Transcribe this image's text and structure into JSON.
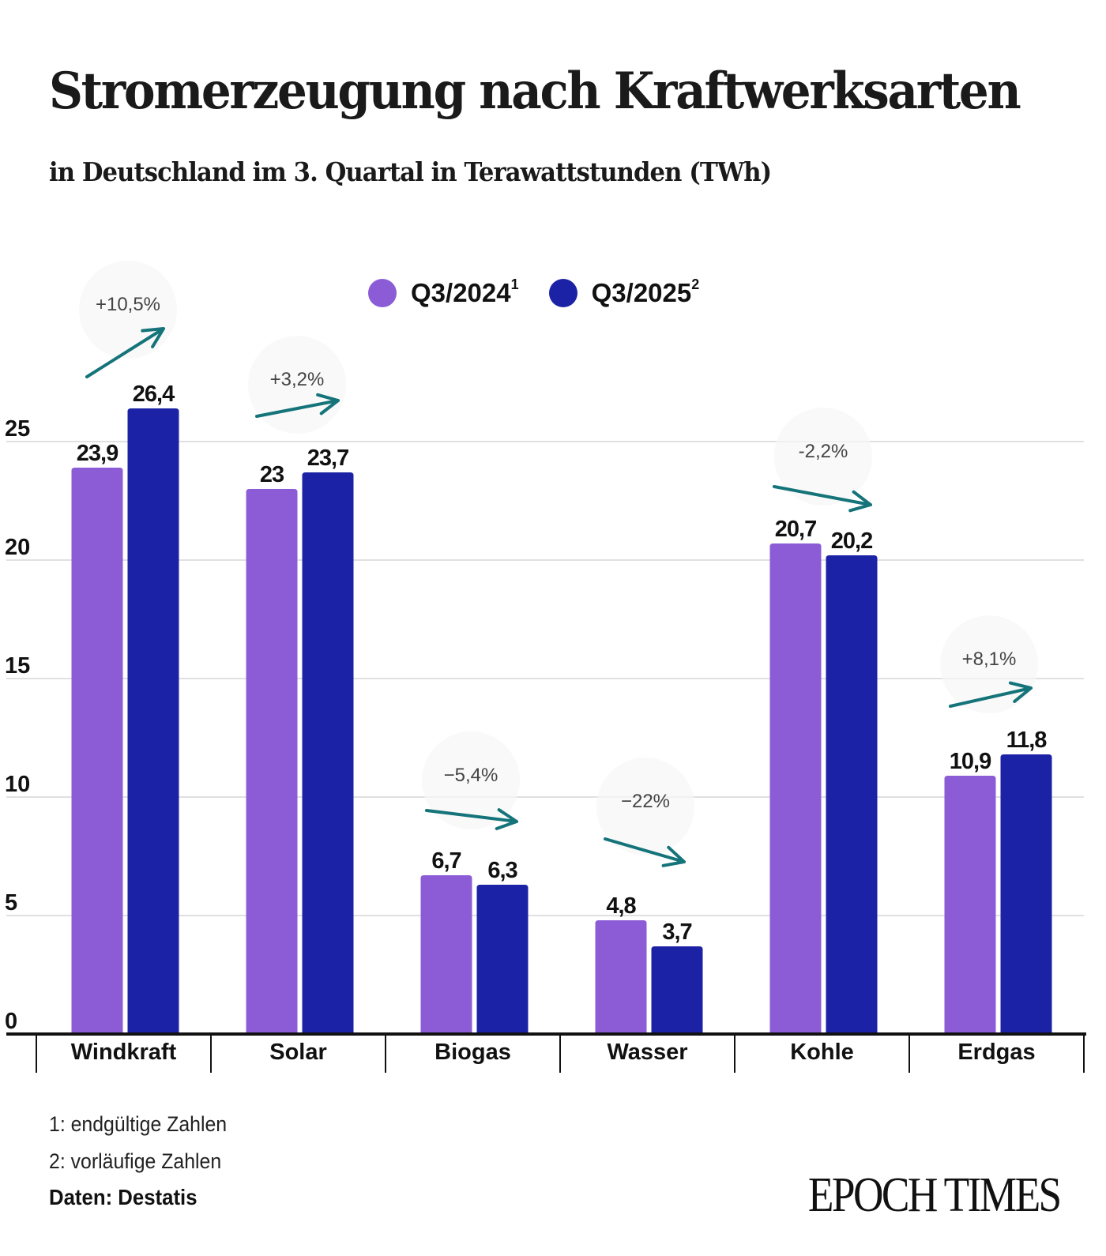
{
  "header": {
    "title": "Stromerzeugung nach Kraftwerksarten",
    "subtitle": "in Deutschland im 3. Quartal in Terawattstunden (TWh)"
  },
  "legend": [
    {
      "label": "Q3/2024",
      "sup": "1",
      "color": "#8b5cd6"
    },
    {
      "label": "Q3/2025",
      "sup": "2",
      "color": "#1c22a6"
    }
  ],
  "chart_data": {
    "type": "bar",
    "title": "Stromerzeugung nach Kraftwerksarten",
    "subtitle": "in Deutschland im 3. Quartal in Terawattstunden (TWh)",
    "xlabel": "",
    "ylabel": "TWh",
    "ylim": [
      0,
      26.4
    ],
    "yticks": [
      0,
      5,
      10,
      15,
      20,
      25
    ],
    "grid": true,
    "legend_position": "top-center",
    "categories": [
      "Windkraft",
      "Solar",
      "Biogas",
      "Wasser",
      "Kohle",
      "Erdgas"
    ],
    "series": [
      {
        "name": "Q3/2024",
        "footnote": "1",
        "color": "#8b5cd6",
        "values": [
          23.9,
          23,
          6.7,
          4.8,
          20.7,
          10.9
        ],
        "labels": [
          "23,9",
          "23",
          "6,7",
          "4,8",
          "20,7",
          "10,9"
        ]
      },
      {
        "name": "Q3/2025",
        "footnote": "2",
        "color": "#1c22a6",
        "values": [
          26.4,
          23.7,
          6.3,
          3.7,
          20.2,
          11.8
        ],
        "labels": [
          "26,4",
          "23,7",
          "6,3",
          "3,7",
          "20,2",
          "11,8"
        ]
      }
    ],
    "annotations": [
      {
        "category": "Windkraft",
        "text": "+10,5%",
        "direction": "up-steep"
      },
      {
        "category": "Solar",
        "text": "+3,2%",
        "direction": "up"
      },
      {
        "category": "Biogas",
        "text": "−5,4%",
        "direction": "down"
      },
      {
        "category": "Wasser",
        "text": "−22%",
        "direction": "down-steep"
      },
      {
        "category": "Kohle",
        "text": "-2,2%",
        "direction": "down"
      },
      {
        "category": "Erdgas",
        "text": "+8,1%",
        "direction": "up"
      }
    ],
    "arrow_color": "#14747a"
  },
  "footer": {
    "footnotes": [
      "1: endgültige Zahlen",
      "2: vorläufige Zahlen"
    ],
    "source": "Daten: Destatis",
    "logo": "EPOCH TIMES"
  }
}
